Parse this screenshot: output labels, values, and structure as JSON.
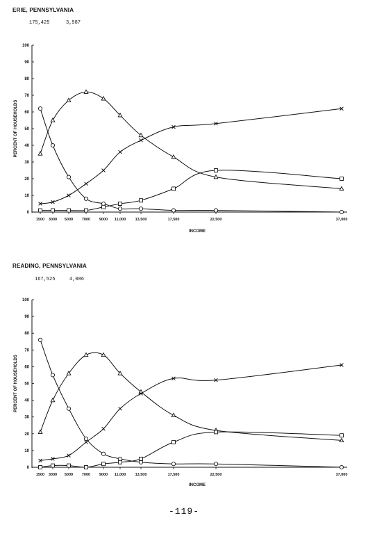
{
  "page_number": "-119-",
  "chart_data": [
    {
      "type": "line",
      "title": "ERIE, PENNSYLVANIA",
      "subtitle_values": [
        "175,425",
        "3,987"
      ],
      "xlabel": "INCOME",
      "ylabel": "PERCENT OF HOUSEHOLDS",
      "x_ticks": [
        "1500",
        "3000",
        "5000",
        "7000",
        "9000",
        "11,000",
        "13,500",
        "17,500",
        "22,500",
        "37,000"
      ],
      "ylim": [
        0,
        100
      ],
      "y_ticks": [
        "0",
        "10",
        "20",
        "30",
        "40",
        "50",
        "60",
        "70",
        "80",
        "90",
        "100"
      ],
      "grid": false,
      "series": [
        {
          "marker": "circle",
          "values": [
            62,
            40,
            21,
            8,
            5,
            2,
            2,
            1,
            1,
            0
          ]
        },
        {
          "marker": "triangle",
          "values": [
            35,
            55,
            67,
            72,
            68,
            58,
            46,
            33,
            21,
            14
          ]
        },
        {
          "marker": "x",
          "values": [
            5,
            6,
            10,
            17,
            25,
            36,
            43,
            51,
            53,
            62
          ]
        },
        {
          "marker": "square",
          "values": [
            1,
            1,
            1,
            1,
            3,
            5,
            7,
            14,
            25,
            20
          ]
        }
      ]
    },
    {
      "type": "line",
      "title": "READING, PENNSYLVANIA",
      "subtitle_values": [
        "167,525",
        "4,086"
      ],
      "xlabel": "INCOME",
      "ylabel": "PERCENT OF HOUSEHOLDS",
      "x_ticks": [
        "1500",
        "3000",
        "5000",
        "7000",
        "9000",
        "11,000",
        "13,500",
        "17,500",
        "22,500",
        "37,000"
      ],
      "ylim": [
        0,
        100
      ],
      "y_ticks": [
        "0",
        "10",
        "20",
        "30",
        "40",
        "50",
        "60",
        "70",
        "80",
        "90",
        "100"
      ],
      "grid": false,
      "series": [
        {
          "marker": "circle",
          "values": [
            76,
            55,
            35,
            17,
            8,
            5,
            3,
            2,
            2,
            0
          ]
        },
        {
          "marker": "triangle",
          "values": [
            21,
            40,
            56,
            67,
            67,
            56,
            45,
            31,
            22,
            16
          ]
        },
        {
          "marker": "x",
          "values": [
            4,
            5,
            7,
            15,
            23,
            35,
            44,
            53,
            52,
            61
          ]
        },
        {
          "marker": "square",
          "values": [
            0,
            1,
            1,
            0,
            2,
            3,
            5,
            15,
            21,
            19
          ]
        }
      ]
    }
  ]
}
